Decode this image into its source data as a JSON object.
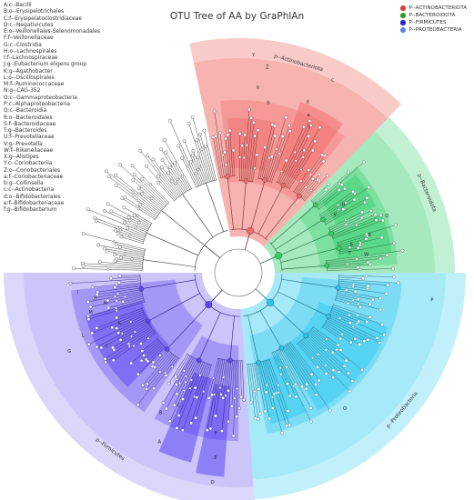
{
  "title": "OTU Tree of AA by GraPhlAn",
  "key_list": [
    "A:c--Bacilli",
    "B:o--Erysipelotrichales",
    "C:f--Erysipelatoclostridiaceae",
    "D:c--Negativicutes",
    "E:o--Veillonellales-Selenomonadales",
    "F:f--Veillonellaceae",
    "G:c--Clostridia",
    "H:o--Lachnospirales",
    "I:f--Lachnospiraceae",
    "J:g--Eubacterium eligens group",
    "K:g--Agathobacter",
    "L:o--Oscillospirales",
    "M:f--Ruminococcaceae",
    "N:g--CAG-352",
    "O:c--Gammaproteobacteria",
    "P:c--Alphaproteobacteria",
    "Q:c--Bacteroidia",
    "R:o--Bacteroidales",
    "S:f--Bacteroidaceae",
    "T:g--Bacteroides",
    "U:f--Prevotellaceae",
    "V:g--Prevotella",
    "W:f--Rikenellaceae",
    "X:g--Alistipes",
    "Y:c--Coriobacteriia",
    "Z:o--Coriobacteriales",
    "a:f--Coriobacteriaceae",
    "b:g--Collinsella",
    "c:c--Actinobacteria",
    "d:o--Bifidobacteriales",
    "e:f--Bifidobacteriaceae",
    "f:g--Bifidobacterium"
  ],
  "legend": [
    {
      "label": "P--ACTINOBACTERIOTA",
      "color": "#d9412e"
    },
    {
      "label": "P--BACTEROIDOTA",
      "color": "#3a9a2a"
    },
    {
      "label": "P--FIRMICUTES",
      "color": "#2d1fd6"
    },
    {
      "label": "P--PROTEOBACTERIA",
      "color": "#5b86d8"
    }
  ],
  "phyla": {
    "actino": {
      "label": "p--Actinobacteriota",
      "color": "#f4a09a"
    },
    "bactero": {
      "label": "p--Bacteroidota",
      "color": "#8fe3ad"
    },
    "proteo": {
      "label": "p--Proteobacteria",
      "color": "#8fe3f5"
    },
    "firmi": {
      "label": "p--Firmicutes",
      "color": "#bdb6f8"
    }
  },
  "clade_letters": {
    "Y": "Y",
    "Z": "Z",
    "c": "c",
    "a": "a",
    "b": "b",
    "d": "d",
    "e": "e",
    "f": "f",
    "Q": "Q",
    "R": "R",
    "S": "S",
    "T": "T",
    "U": "U",
    "V": "V",
    "W": "W",
    "P": "P",
    "O": "O",
    "M": "M",
    "L": "L",
    "N": "N",
    "K": "K",
    "H": "H",
    "I": "I",
    "J": "J",
    "G": "G",
    "A": "A",
    "B": "B",
    "C": "C",
    "D": "D",
    "E": "E",
    "F": "F"
  }
}
